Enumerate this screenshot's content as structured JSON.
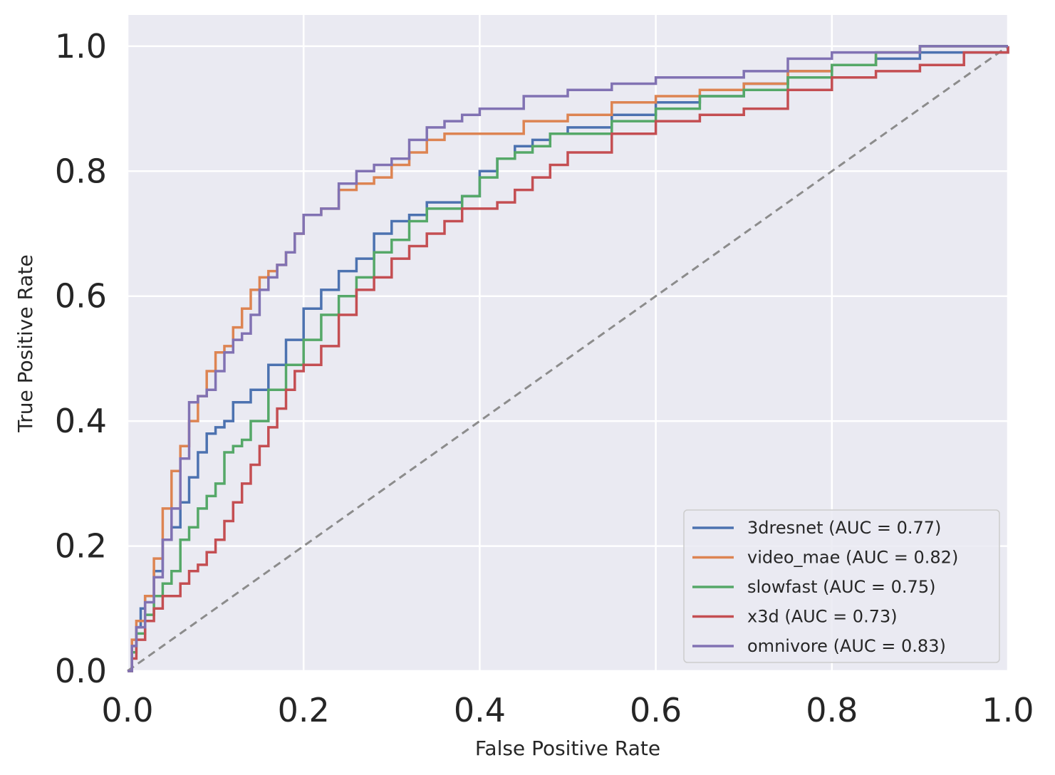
{
  "chart_data": {
    "type": "line",
    "title": "",
    "xlabel": "False Positive Rate",
    "ylabel": "True Positive Rate",
    "xlim": [
      0.0,
      1.0
    ],
    "ylim": [
      0.0,
      1.05
    ],
    "xticks": [
      "0.0",
      "0.2",
      "0.4",
      "0.6",
      "0.8",
      "1.0"
    ],
    "yticks": [
      "0.0",
      "0.2",
      "0.4",
      "0.6",
      "0.8",
      "1.0"
    ],
    "grid": true,
    "legend_position": "lower-right",
    "colors": {
      "background": "#eaeaf2",
      "grid": "#ffffff",
      "chance": "#8c8c8c"
    },
    "chance_line": {
      "x": [
        0,
        1
      ],
      "y": [
        0,
        1
      ],
      "style": "dashed"
    },
    "series": [
      {
        "name": "3dresnet",
        "label": "3dresnet (AUC = 0.77)",
        "auc": 0.77,
        "color": "#4c72b0",
        "x": [
          0,
          0.005,
          0.01,
          0.015,
          0.02,
          0.03,
          0.04,
          0.05,
          0.06,
          0.07,
          0.08,
          0.09,
          0.1,
          0.11,
          0.12,
          0.14,
          0.16,
          0.18,
          0.2,
          0.22,
          0.24,
          0.26,
          0.28,
          0.3,
          0.32,
          0.34,
          0.36,
          0.38,
          0.4,
          0.42,
          0.44,
          0.46,
          0.48,
          0.5,
          0.55,
          0.6,
          0.65,
          0.7,
          0.75,
          0.8,
          0.85,
          0.9,
          0.95,
          1.0
        ],
        "y": [
          0,
          0.04,
          0.07,
          0.1,
          0.12,
          0.16,
          0.21,
          0.23,
          0.27,
          0.31,
          0.35,
          0.38,
          0.39,
          0.4,
          0.43,
          0.45,
          0.49,
          0.53,
          0.58,
          0.61,
          0.64,
          0.66,
          0.7,
          0.72,
          0.73,
          0.75,
          0.75,
          0.76,
          0.8,
          0.82,
          0.84,
          0.85,
          0.86,
          0.87,
          0.89,
          0.91,
          0.92,
          0.94,
          0.96,
          0.97,
          0.98,
          0.99,
          0.99,
          1.0
        ]
      },
      {
        "name": "video_mae",
        "label": "video_mae (AUC = 0.82)",
        "auc": 0.82,
        "color": "#dd8452",
        "x": [
          0,
          0.005,
          0.01,
          0.02,
          0.03,
          0.04,
          0.05,
          0.06,
          0.07,
          0.08,
          0.09,
          0.1,
          0.11,
          0.12,
          0.13,
          0.14,
          0.15,
          0.16,
          0.17,
          0.18,
          0.19,
          0.2,
          0.22,
          0.24,
          0.26,
          0.28,
          0.3,
          0.32,
          0.34,
          0.36,
          0.38,
          0.4,
          0.45,
          0.5,
          0.55,
          0.6,
          0.65,
          0.7,
          0.75,
          0.8,
          0.85,
          0.9,
          0.95,
          1.0
        ],
        "y": [
          0,
          0.05,
          0.08,
          0.12,
          0.18,
          0.26,
          0.32,
          0.36,
          0.4,
          0.44,
          0.48,
          0.51,
          0.52,
          0.55,
          0.58,
          0.61,
          0.63,
          0.64,
          0.65,
          0.67,
          0.7,
          0.73,
          0.74,
          0.77,
          0.78,
          0.79,
          0.81,
          0.83,
          0.85,
          0.86,
          0.86,
          0.86,
          0.88,
          0.89,
          0.91,
          0.92,
          0.93,
          0.94,
          0.96,
          0.97,
          0.99,
          1.0,
          1.0,
          1.0
        ]
      },
      {
        "name": "slowfast",
        "label": "slowfast (AUC = 0.75)",
        "auc": 0.75,
        "color": "#55a868",
        "x": [
          0,
          0.005,
          0.01,
          0.02,
          0.03,
          0.04,
          0.05,
          0.06,
          0.07,
          0.08,
          0.09,
          0.1,
          0.11,
          0.12,
          0.13,
          0.14,
          0.16,
          0.18,
          0.2,
          0.22,
          0.24,
          0.26,
          0.28,
          0.3,
          0.32,
          0.34,
          0.36,
          0.38,
          0.4,
          0.42,
          0.44,
          0.46,
          0.48,
          0.5,
          0.55,
          0.6,
          0.65,
          0.7,
          0.75,
          0.8,
          0.85,
          0.9,
          0.95,
          1.0
        ],
        "y": [
          0,
          0.03,
          0.06,
          0.09,
          0.12,
          0.14,
          0.16,
          0.21,
          0.23,
          0.26,
          0.28,
          0.3,
          0.35,
          0.36,
          0.37,
          0.4,
          0.45,
          0.49,
          0.53,
          0.57,
          0.6,
          0.63,
          0.67,
          0.69,
          0.72,
          0.74,
          0.74,
          0.76,
          0.79,
          0.82,
          0.83,
          0.84,
          0.86,
          0.86,
          0.88,
          0.9,
          0.92,
          0.93,
          0.95,
          0.97,
          0.99,
          1.0,
          1.0,
          1.0
        ]
      },
      {
        "name": "x3d",
        "label": "x3d (AUC = 0.73)",
        "auc": 0.73,
        "color": "#c44e52",
        "x": [
          0,
          0.005,
          0.01,
          0.02,
          0.03,
          0.04,
          0.06,
          0.07,
          0.08,
          0.09,
          0.1,
          0.11,
          0.12,
          0.13,
          0.14,
          0.15,
          0.16,
          0.17,
          0.18,
          0.19,
          0.2,
          0.22,
          0.24,
          0.26,
          0.28,
          0.3,
          0.32,
          0.34,
          0.36,
          0.38,
          0.4,
          0.42,
          0.44,
          0.46,
          0.48,
          0.5,
          0.55,
          0.6,
          0.65,
          0.7,
          0.75,
          0.8,
          0.85,
          0.9,
          0.95,
          1.0
        ],
        "y": [
          0,
          0.02,
          0.05,
          0.08,
          0.1,
          0.12,
          0.14,
          0.16,
          0.17,
          0.19,
          0.21,
          0.24,
          0.27,
          0.3,
          0.33,
          0.36,
          0.39,
          0.42,
          0.45,
          0.48,
          0.49,
          0.52,
          0.57,
          0.61,
          0.63,
          0.66,
          0.68,
          0.7,
          0.72,
          0.74,
          0.74,
          0.75,
          0.77,
          0.79,
          0.81,
          0.83,
          0.86,
          0.88,
          0.89,
          0.9,
          0.93,
          0.95,
          0.96,
          0.97,
          0.99,
          1.0
        ]
      },
      {
        "name": "omnivore",
        "label": "omnivore (AUC = 0.83)",
        "auc": 0.83,
        "color": "#8172b3",
        "x": [
          0,
          0.005,
          0.01,
          0.02,
          0.03,
          0.04,
          0.05,
          0.06,
          0.07,
          0.08,
          0.09,
          0.1,
          0.11,
          0.12,
          0.13,
          0.14,
          0.15,
          0.16,
          0.17,
          0.18,
          0.19,
          0.2,
          0.22,
          0.24,
          0.26,
          0.28,
          0.3,
          0.32,
          0.34,
          0.36,
          0.38,
          0.4,
          0.45,
          0.5,
          0.55,
          0.6,
          0.65,
          0.7,
          0.75,
          0.8,
          0.85,
          0.9,
          0.95,
          1.0
        ],
        "y": [
          0,
          0.04,
          0.07,
          0.11,
          0.15,
          0.21,
          0.26,
          0.34,
          0.43,
          0.44,
          0.45,
          0.48,
          0.51,
          0.53,
          0.54,
          0.57,
          0.61,
          0.63,
          0.65,
          0.67,
          0.7,
          0.73,
          0.74,
          0.78,
          0.8,
          0.81,
          0.82,
          0.85,
          0.87,
          0.88,
          0.89,
          0.9,
          0.92,
          0.93,
          0.94,
          0.95,
          0.95,
          0.96,
          0.98,
          0.99,
          0.99,
          1.0,
          1.0,
          1.0
        ]
      }
    ]
  }
}
